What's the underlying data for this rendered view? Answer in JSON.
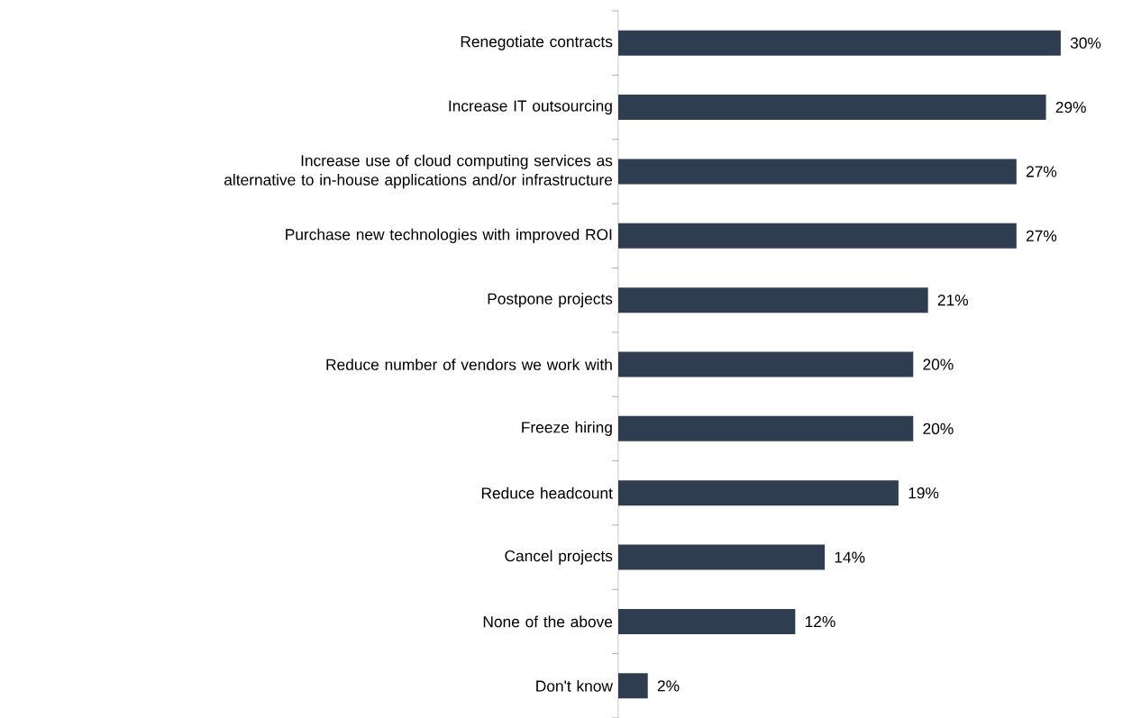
{
  "chart_data": {
    "type": "bar",
    "orientation": "horizontal",
    "color": "#2e3e50",
    "categories": [
      "Renegotiate contracts",
      "Increase IT outsourcing",
      "Increase use of cloud computing services as alternative to in-house applications and/or infrastructure",
      "Purchase new technologies with improved ROI",
      "Postpone projects",
      "Reduce number of vendors we work with",
      "Freeze hiring",
      "Reduce headcount",
      "Cancel projects",
      "None of the above",
      "Don't know"
    ],
    "values": [
      30,
      29,
      27,
      27,
      21,
      20,
      20,
      19,
      14,
      12,
      2
    ],
    "value_labels": [
      "30%",
      "29%",
      "27%",
      "27%",
      "21%",
      "20%",
      "20%",
      "19%",
      "14%",
      "12%",
      "2%"
    ]
  }
}
